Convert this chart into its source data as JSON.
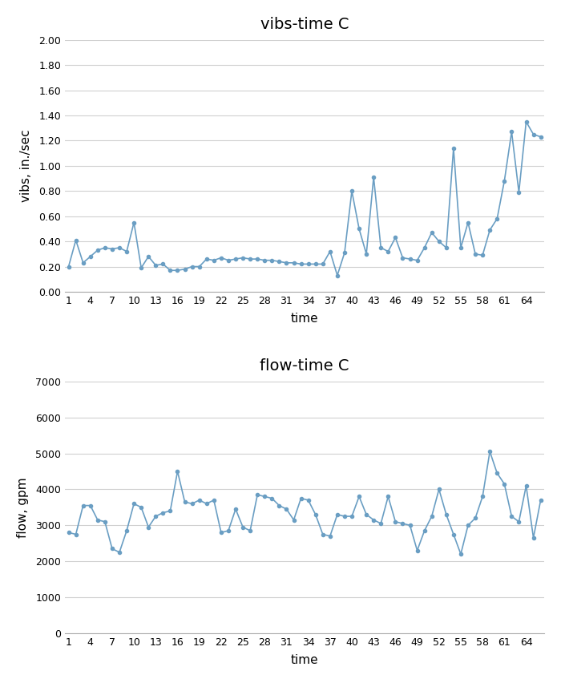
{
  "vibs_title": "vibs-time C",
  "vibs_xlabel": "time",
  "vibs_ylabel": "vibs, in./sec",
  "vibs_ylim": [
    0.0,
    2.0
  ],
  "vibs_yticks": [
    0.0,
    0.2,
    0.4,
    0.6,
    0.8,
    1.0,
    1.2,
    1.4,
    1.6,
    1.8,
    2.0
  ],
  "vibs_x": [
    1,
    2,
    3,
    4,
    5,
    6,
    7,
    8,
    9,
    10,
    11,
    12,
    13,
    14,
    15,
    16,
    17,
    18,
    19,
    20,
    21,
    22,
    23,
    24,
    25,
    26,
    27,
    28,
    29,
    30,
    31,
    32,
    33,
    34,
    35,
    36,
    37,
    38,
    39,
    40,
    41,
    42,
    43,
    44,
    45,
    46,
    47,
    48,
    49,
    50,
    51,
    52,
    53,
    54,
    55,
    56,
    57,
    58,
    59,
    60,
    61,
    62,
    63,
    64,
    65,
    66
  ],
  "vibs_y": [
    0.2,
    0.41,
    0.23,
    0.28,
    0.33,
    0.35,
    0.34,
    0.35,
    0.32,
    0.55,
    0.19,
    0.28,
    0.21,
    0.22,
    0.17,
    0.17,
    0.18,
    0.2,
    0.2,
    0.26,
    0.25,
    0.27,
    0.25,
    0.26,
    0.27,
    0.26,
    0.26,
    0.25,
    0.25,
    0.24,
    0.23,
    0.23,
    0.22,
    0.22,
    0.22,
    0.22,
    0.32,
    0.13,
    0.31,
    0.8,
    0.5,
    0.3,
    0.91,
    0.35,
    0.32,
    0.43,
    0.27,
    0.26,
    0.25,
    0.35,
    0.47,
    0.4,
    0.35,
    1.14,
    0.35,
    0.55,
    0.3,
    0.29,
    0.49,
    0.58,
    0.88,
    1.27,
    0.79,
    1.35,
    1.25,
    1.23
  ],
  "flow_title": "flow-time C",
  "flow_xlabel": "time",
  "flow_ylabel": "flow, gpm",
  "flow_ylim": [
    0,
    7000
  ],
  "flow_yticks": [
    0,
    1000,
    2000,
    3000,
    4000,
    5000,
    6000,
    7000
  ],
  "flow_x": [
    1,
    2,
    3,
    4,
    5,
    6,
    7,
    8,
    9,
    10,
    11,
    12,
    13,
    14,
    15,
    16,
    17,
    18,
    19,
    20,
    21,
    22,
    23,
    24,
    25,
    26,
    27,
    28,
    29,
    30,
    31,
    32,
    33,
    34,
    35,
    36,
    37,
    38,
    39,
    40,
    41,
    42,
    43,
    44,
    45,
    46,
    47,
    48,
    49,
    50,
    51,
    52,
    53,
    54,
    55,
    56,
    57,
    58,
    59,
    60,
    61,
    62,
    63,
    64,
    65,
    66
  ],
  "flow_y": [
    2800,
    2750,
    3550,
    3550,
    3150,
    3100,
    2350,
    2250,
    2850,
    3600,
    3500,
    2950,
    3250,
    3350,
    3400,
    4500,
    3650,
    3600,
    3700,
    3600,
    3700,
    2800,
    2850,
    3450,
    2950,
    2850,
    3850,
    3800,
    3750,
    3550,
    3450,
    3150,
    3750,
    3700,
    3300,
    2750,
    2700,
    3300,
    3250,
    3250,
    3800,
    3300,
    3150,
    3050,
    3800,
    3100,
    3050,
    3000,
    2300,
    2850,
    3250,
    4000,
    3300,
    2750,
    2200,
    3000,
    3200,
    3800,
    5050,
    4450,
    4150,
    3250,
    3100,
    4100,
    2650,
    3700
  ],
  "line_color": "#6a9ec3",
  "marker_style": "o",
  "marker_size": 3,
  "line_width": 1.2,
  "xticks": [
    1,
    4,
    7,
    10,
    13,
    16,
    19,
    22,
    25,
    28,
    31,
    34,
    37,
    40,
    43,
    46,
    49,
    52,
    55,
    58,
    61,
    64
  ],
  "background_color": "#ffffff",
  "grid_color": "#d0d0d0"
}
